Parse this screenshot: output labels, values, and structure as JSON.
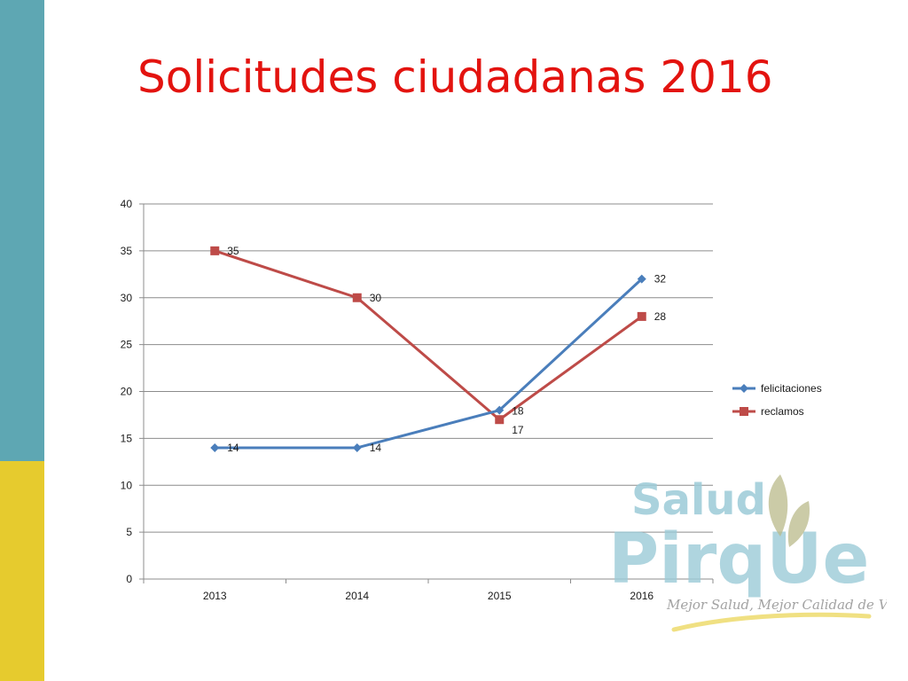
{
  "slide": {
    "title": "Solicitudes ciudadanas 2016"
  },
  "theme": {
    "title_color": "#e3130f",
    "teal": "#5ea7b3",
    "yellow": "#e6cb2e",
    "grid_color": "#8c8c8c",
    "logo_green": "#8ccc96",
    "logo_blue": "#9ccbd8",
    "logo_olive": "#b9b98a"
  },
  "logo": {
    "line1": "Salud",
    "line2": "PirqUe",
    "tagline": "Mejor Salud, Mejor Calidad de Vida."
  },
  "chart_data": {
    "type": "line",
    "categories": [
      "2013",
      "2014",
      "2015",
      "2016"
    ],
    "series": [
      {
        "name": "felicitaciones",
        "values": [
          14,
          14,
          18,
          32
        ],
        "color": "#4a7ebb",
        "marker": "diamond"
      },
      {
        "name": "reclamos",
        "values": [
          35,
          30,
          17,
          28
        ],
        "color": "#be4b48",
        "marker": "square"
      }
    ],
    "ylim": [
      0,
      40
    ],
    "yticks": [
      0,
      5,
      10,
      15,
      20,
      25,
      30,
      35,
      40
    ],
    "grid": true,
    "legend_position": "right",
    "data_labels": true
  }
}
